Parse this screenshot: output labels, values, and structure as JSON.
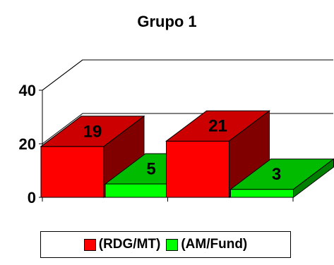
{
  "chart_data": {
    "type": "bar",
    "title": "Grupo 1",
    "categories": [
      "",
      ""
    ],
    "series": [
      {
        "name": "(RDG/MT)",
        "values": [
          19,
          21
        ],
        "color": "#ff0000",
        "top_color": "#cc0000",
        "side_color": "#800000"
      },
      {
        "name": "(AM/Fund)",
        "values": [
          5,
          3
        ],
        "color": "#00ff00",
        "top_color": "#00bb00",
        "side_color": "#008000"
      }
    ],
    "yticks": [
      "0",
      "20",
      "40"
    ],
    "ylim": [
      0,
      40
    ],
    "grid": true,
    "three_d": true,
    "legend": "bottom",
    "xlabel": "",
    "ylabel": ""
  }
}
